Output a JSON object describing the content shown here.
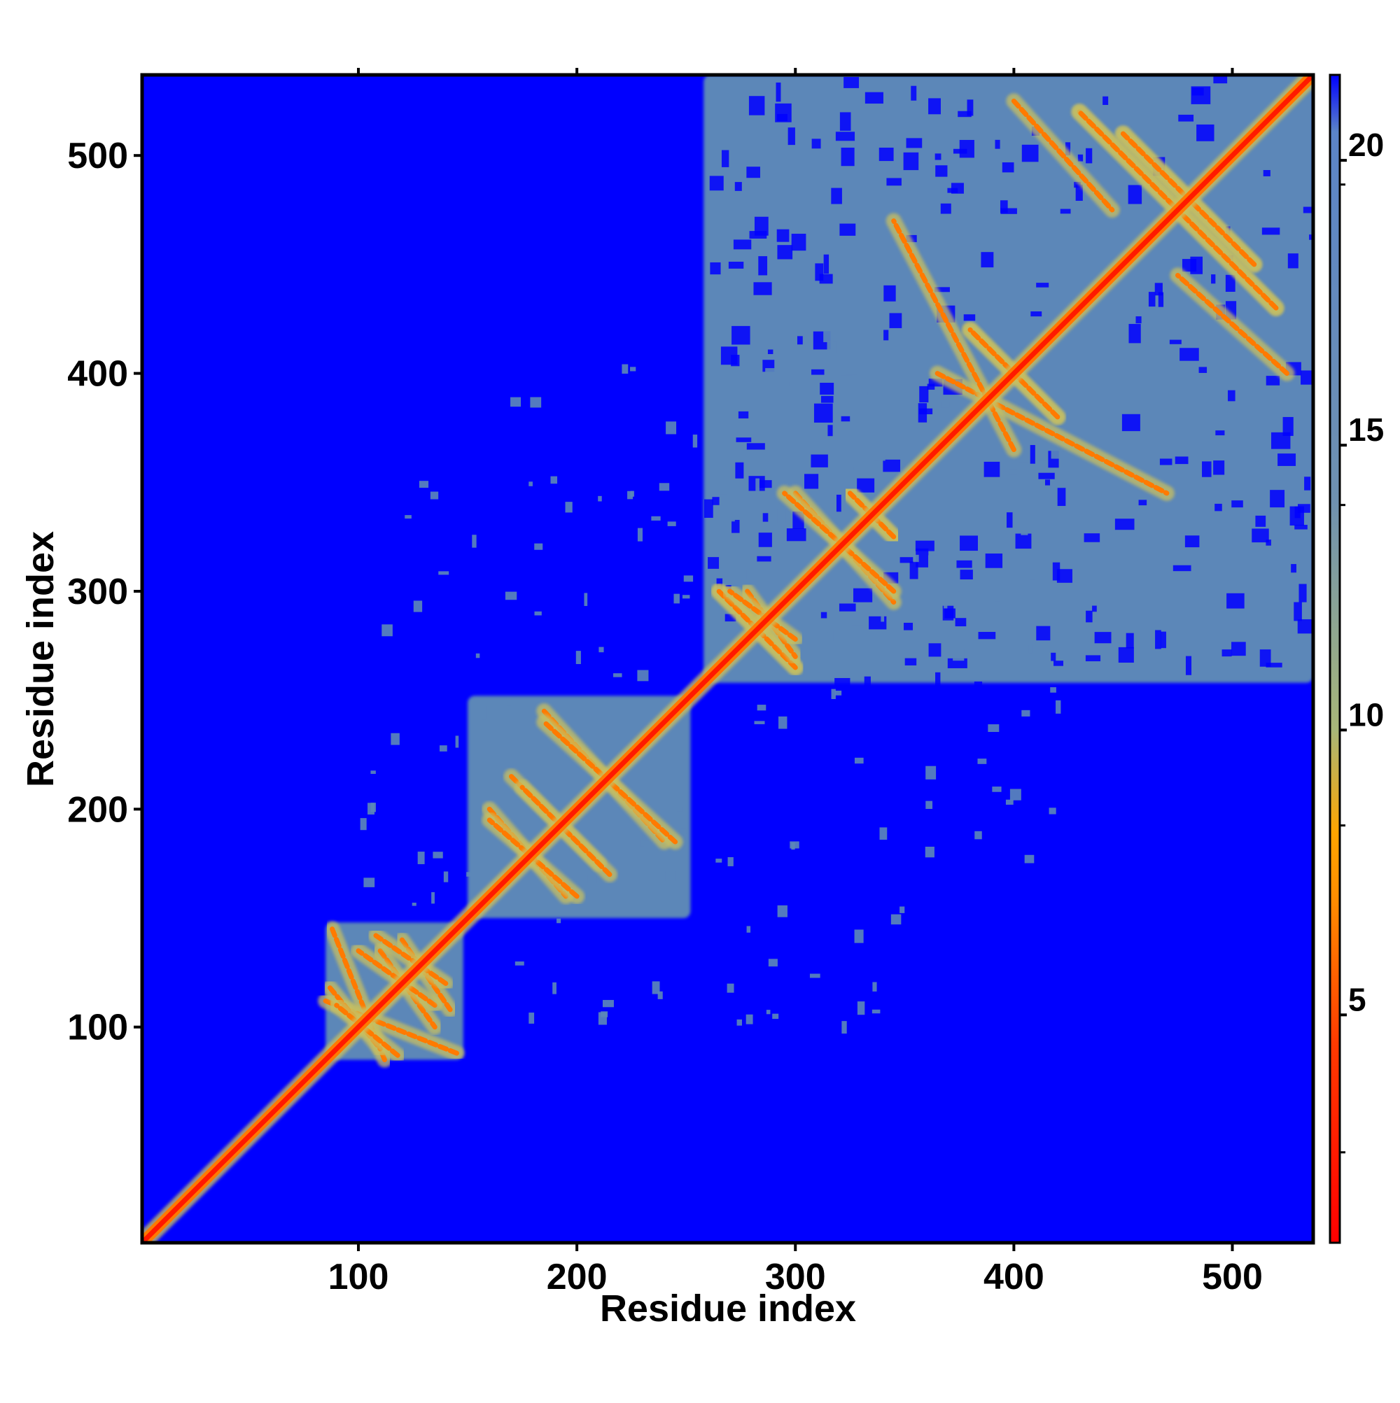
{
  "chart_data": {
    "type": "heatmap",
    "title": "",
    "xlabel": "Residue index",
    "ylabel": "Residue index",
    "xlim": [
      1,
      537
    ],
    "ylim": [
      1,
      537
    ],
    "x_ticks": [
      100,
      200,
      300,
      400,
      500
    ],
    "y_ticks": [
      100,
      200,
      300,
      400,
      500
    ],
    "colorbar": {
      "range": [
        1,
        21.5
      ],
      "ticks": [
        5,
        10,
        15,
        20
      ],
      "stops": [
        {
          "value": 1,
          "color": "#ff0000"
        },
        {
          "value": 4.5,
          "color": "#ff3a00"
        },
        {
          "value": 7,
          "color": "#ff8c00"
        },
        {
          "value": 8.2,
          "color": "#ffa500"
        },
        {
          "value": 10,
          "color": "#a8b678"
        },
        {
          "value": 14,
          "color": "#6f91b0"
        },
        {
          "value": 20.5,
          "color": "#5b84c8"
        },
        {
          "value": 21.5,
          "color": "#0000ff"
        }
      ]
    },
    "colors": {
      "background": "#0000ff",
      "domain_fill": "#5c87b8",
      "contact_mid": "#c8c060",
      "contact_close": "#ff7a00",
      "diagonal": "#ff1a00"
    },
    "domain_blocks": [
      {
        "from": 85,
        "to": 148
      },
      {
        "from": 150,
        "to": 252
      },
      {
        "from": 258,
        "to": 537
      }
    ],
    "contact_bands": [
      {
        "start": [
          88,
          145
        ],
        "end": [
          112,
          85
        ],
        "kind": "anti"
      },
      {
        "start": [
          110,
          135
        ],
        "end": [
          135,
          100
        ],
        "kind": "anti"
      },
      {
        "start": [
          120,
          140
        ],
        "end": [
          142,
          108
        ],
        "kind": "anti"
      },
      {
        "start": [
          87,
          118
        ],
        "end": [
          110,
          90
        ],
        "kind": "anti"
      },
      {
        "start": [
          160,
          200
        ],
        "end": [
          195,
          160
        ],
        "kind": "anti"
      },
      {
        "start": [
          170,
          215
        ],
        "end": [
          210,
          175
        ],
        "kind": "anti"
      },
      {
        "start": [
          185,
          245
        ],
        "end": [
          240,
          185
        ],
        "kind": "anti"
      },
      {
        "start": [
          265,
          300
        ],
        "end": [
          300,
          265
        ],
        "kind": "anti"
      },
      {
        "start": [
          278,
          300
        ],
        "end": [
          300,
          270
        ],
        "kind": "anti"
      },
      {
        "start": [
          300,
          345
        ],
        "end": [
          345,
          295
        ],
        "kind": "anti"
      },
      {
        "start": [
          325,
          345
        ],
        "end": [
          345,
          325
        ],
        "kind": "anti"
      },
      {
        "start": [
          380,
          420
        ],
        "end": [
          420,
          380
        ],
        "kind": "anti"
      },
      {
        "start": [
          430,
          520
        ],
        "end": [
          520,
          430
        ],
        "kind": "anti"
      },
      {
        "start": [
          450,
          510
        ],
        "end": [
          510,
          450
        ],
        "kind": "anti"
      },
      {
        "start": [
          365,
          400
        ],
        "end": [
          470,
          345
        ],
        "kind": "anti"
      },
      {
        "start": [
          400,
          525
        ],
        "end": [
          445,
          475
        ],
        "kind": "anti"
      }
    ],
    "grid": false,
    "legend": "right colorbar"
  }
}
